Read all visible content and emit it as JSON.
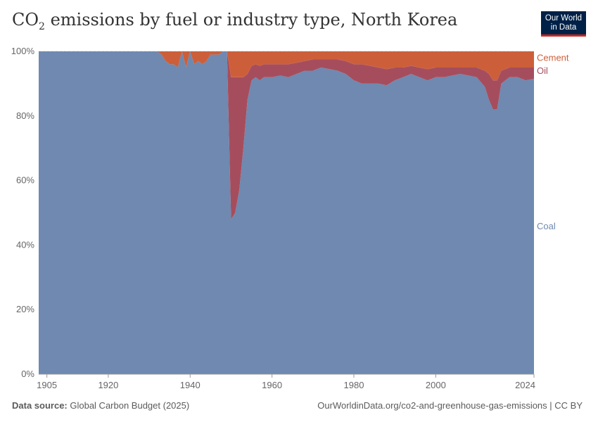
{
  "header": {
    "title_prefix": "CO",
    "title_sub": "2",
    "title_suffix": " emissions by fuel or industry type, North Korea",
    "logo_line1": "Our World",
    "logo_line2": "in Data"
  },
  "footer": {
    "source_label": "Data source:",
    "source_text": " Global Carbon Budget (2025)",
    "url": "OurWorldinData.org/co2-and-greenhouse-gas-emissions | CC BY"
  },
  "chart_data": {
    "type": "area",
    "stacked": true,
    "normalized": true,
    "x_ticks": [
      1905,
      1920,
      1940,
      1960,
      1980,
      2000,
      2024
    ],
    "y_ticks": [
      0,
      20,
      40,
      60,
      80,
      100
    ],
    "y_tick_labels": [
      "0%",
      "20%",
      "40%",
      "60%",
      "80%",
      "100%"
    ],
    "xlim": [
      1903,
      2024
    ],
    "ylim": [
      0,
      100
    ],
    "grid": "horizontal",
    "legend": "inline-right",
    "x": [
      1903,
      1932,
      1933,
      1934,
      1935,
      1936,
      1937,
      1938,
      1939,
      1940,
      1941,
      1942,
      1943,
      1944,
      1945,
      1946,
      1947,
      1948,
      1949,
      1950,
      1951,
      1952,
      1953,
      1954,
      1955,
      1956,
      1957,
      1958,
      1959,
      1960,
      1962,
      1964,
      1966,
      1968,
      1970,
      1972,
      1974,
      1976,
      1978,
      1980,
      1982,
      1984,
      1986,
      1988,
      1990,
      1992,
      1994,
      1996,
      1998,
      2000,
      2002,
      2004,
      2006,
      2008,
      2010,
      2012,
      2013,
      2014,
      2015,
      2016,
      2018,
      2020,
      2022,
      2024
    ],
    "series": [
      {
        "name": "Coal",
        "color": "#6f89b0",
        "values": [
          100,
          100,
          99,
          97,
          96,
          96,
          95,
          100,
          95,
          100,
          96,
          97,
          96,
          97,
          99,
          99,
          99,
          100,
          100,
          48,
          50,
          57,
          70,
          85,
          91,
          92,
          91,
          92,
          92,
          92,
          92.5,
          92,
          93,
          94,
          94,
          95,
          94.5,
          94,
          93,
          91,
          90,
          90,
          90,
          89.5,
          91,
          92,
          93,
          92,
          91,
          92,
          92,
          92.5,
          93,
          92.5,
          92,
          89,
          85,
          82,
          82,
          90,
          92,
          92,
          91,
          91.5
        ]
      },
      {
        "name": "Oil",
        "color": "#a64d5d",
        "values": [
          0,
          0,
          0,
          0,
          0,
          0,
          0,
          0,
          0,
          0,
          0,
          0,
          0,
          0,
          0,
          0,
          0,
          0,
          0,
          44,
          42,
          35,
          22,
          8,
          4.5,
          4,
          4.5,
          4,
          4,
          4,
          3.5,
          4,
          3.5,
          3,
          3.5,
          2.5,
          3,
          3.5,
          4,
          5,
          6,
          5.5,
          5,
          5,
          4,
          3,
          2.5,
          3,
          3.5,
          3,
          3,
          2.5,
          2,
          2.5,
          3,
          5,
          8,
          9,
          9,
          4,
          3,
          3,
          4,
          3.5
        ]
      },
      {
        "name": "Cement",
        "color": "#cc5f3a",
        "values": [
          0,
          0,
          1,
          3,
          4,
          4,
          5,
          0,
          5,
          0,
          4,
          3,
          4,
          3,
          1,
          1,
          1,
          0,
          0,
          8,
          8,
          8,
          8,
          7,
          4.5,
          4,
          4.5,
          4,
          4,
          4,
          4,
          4,
          3.5,
          3,
          2.5,
          2.5,
          2.5,
          2.5,
          3,
          4,
          4,
          4.5,
          5,
          5.5,
          5,
          5,
          4.5,
          5,
          5.5,
          5,
          5,
          5,
          5,
          5,
          5,
          6,
          7,
          9,
          9,
          6,
          5,
          5,
          5,
          5
        ]
      }
    ]
  }
}
